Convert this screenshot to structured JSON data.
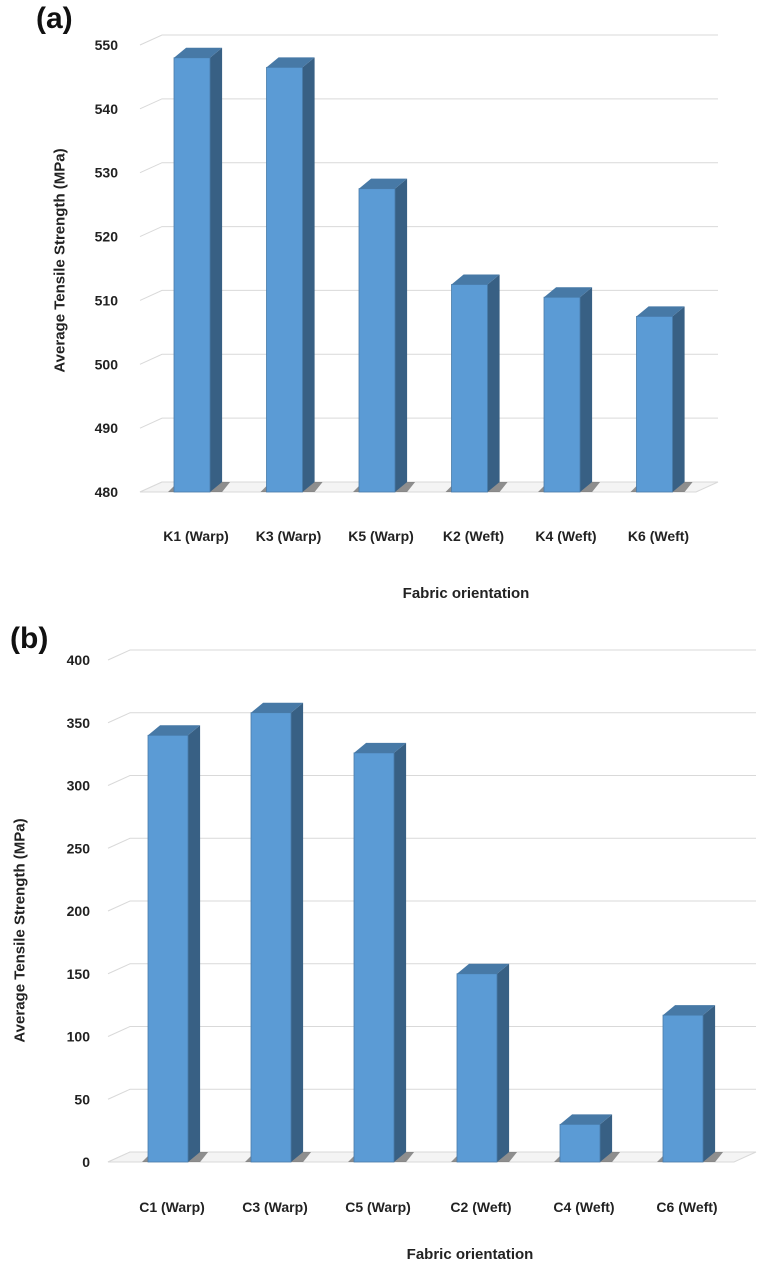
{
  "chart_data": [
    {
      "id": "a",
      "type": "bar",
      "panel_label": "(a)",
      "categories": [
        "K1 (Warp)",
        "K3 (Warp)",
        "K5 (Warp)",
        "K2 (Weft)",
        "K4 (Weft)",
        "K6 (Weft)"
      ],
      "values": [
        548,
        546.5,
        527.5,
        512.5,
        510.5,
        507.5
      ],
      "ylabel": "Average Tensile Strength (MPa)",
      "xlabel": "Fabric orientation",
      "ylim": [
        480,
        550
      ],
      "yticks": [
        480,
        490,
        500,
        510,
        520,
        530,
        540,
        550
      ],
      "grid": true,
      "bar_color": "#5b9bd5"
    },
    {
      "id": "b",
      "type": "bar",
      "panel_label": "(b)",
      "categories": [
        "C1 (Warp)",
        "C3 (Warp)",
        "C5 (Warp)",
        "C2 (Weft)",
        "C4 (Weft)",
        "C6 (Weft)"
      ],
      "values": [
        340,
        358,
        326,
        150,
        30,
        117
      ],
      "ylabel": "Average Tensile Strength (MPa)",
      "xlabel": "Fabric orientation",
      "ylim": [
        0,
        400
      ],
      "yticks": [
        0,
        50,
        100,
        150,
        200,
        250,
        300,
        350,
        400
      ],
      "grid": true,
      "bar_color": "#5b9bd5"
    }
  ]
}
